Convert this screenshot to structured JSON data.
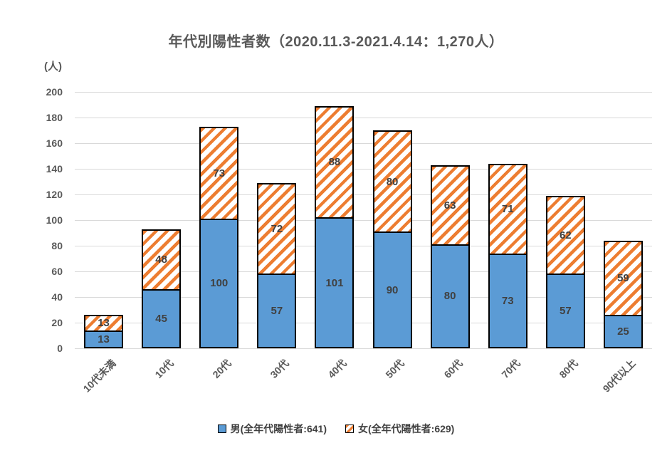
{
  "title": "年代別陽性者数（2020.11.3-2021.4.14：1,270人）",
  "y_axis_unit_label": "(人)",
  "chart_data": {
    "type": "bar",
    "stacked": true,
    "title": "年代別陽性者数（2020.11.3-2021.4.14：1,270人）",
    "total_label": "1,270人",
    "categories": [
      "10代未満",
      "10代",
      "20代",
      "30代",
      "40代",
      "50代",
      "60代",
      "70代",
      "80代",
      "90代以上"
    ],
    "series": [
      {
        "name": "男(全年代陽性者:641)",
        "total": 641,
        "color": "#5B9BD5",
        "pattern": "solid",
        "values": [
          13,
          45,
          100,
          57,
          101,
          90,
          80,
          73,
          57,
          25
        ]
      },
      {
        "name": "女(全年代陽性者:629)",
        "total": 629,
        "color": "#ED7D31",
        "pattern": "diagonal-stripe",
        "values": [
          13,
          48,
          73,
          72,
          88,
          80,
          63,
          71,
          62,
          59
        ]
      }
    ],
    "xlabel": "",
    "ylabel": "(人)",
    "ylim": [
      0,
      200
    ],
    "ytick_interval": 20,
    "grid": true,
    "legend_position": "bottom"
  },
  "style": {
    "male_blue": "#5B9BD5",
    "female_orange": "#ED7D31",
    "gridline": "#D9D9D9",
    "axis_text": "#595959",
    "value_text": "#404040",
    "bar_border": "#000000",
    "background": "#FFFFFF"
  }
}
